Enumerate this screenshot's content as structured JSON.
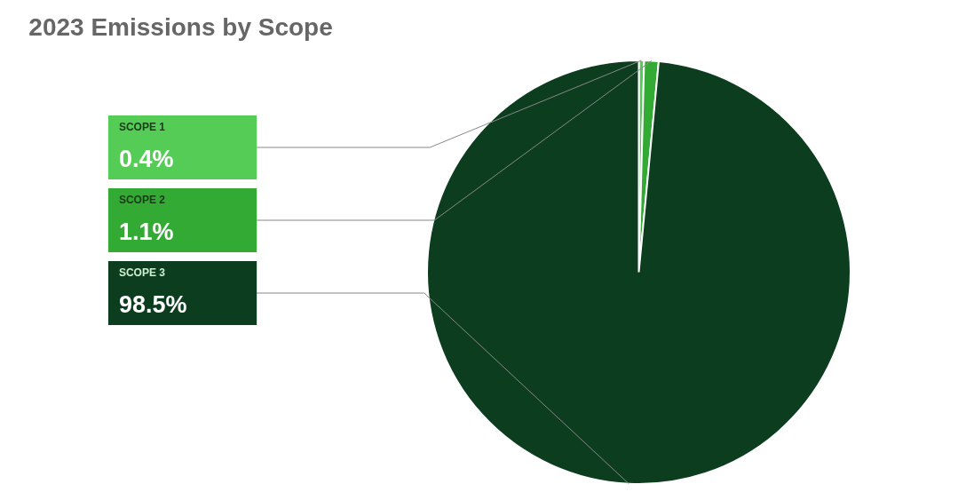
{
  "chart_data": {
    "type": "pie",
    "title": "2023 Emissions by Scope",
    "categories": [
      "SCOPE 1",
      "SCOPE 2",
      "SCOPE 3"
    ],
    "values": [
      0.4,
      1.1,
      98.5
    ],
    "value_labels": [
      "0.4%",
      "1.1%",
      "98.5%"
    ],
    "colors": [
      "#55cc55",
      "#33aa33",
      "#0d3d1f"
    ],
    "data_labels": true
  }
}
